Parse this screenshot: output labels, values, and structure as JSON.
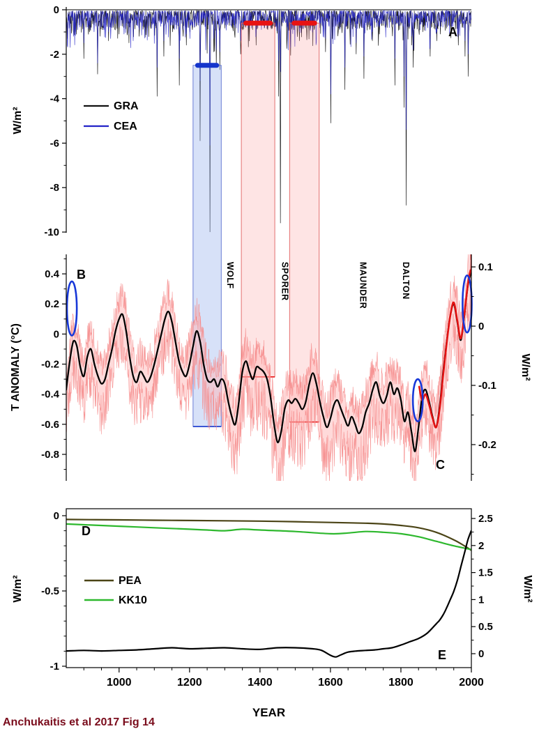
{
  "figure": {
    "caption": "Anchukaitis et al 2017 Fig 14"
  },
  "colors": {
    "gra": "#111111",
    "cea": "#2323c8",
    "temperature": "#000000",
    "annual_line": "#f58a8a",
    "annual_fill": "#ffb5b5",
    "red_forcing": "#e31212",
    "blue_annotation": "#1838d8",
    "band_blue_fill": "#8caaeb",
    "band_blue_edge": "#5b6fd0",
    "band_blue_bar": "#1535cc",
    "band_red_fill": "#fa8282",
    "band_red_edge": "#e06060",
    "band_red_bar": "#e81212",
    "pea": "#4b4416",
    "kk10": "#2db82d",
    "caption": "#7a0c1c",
    "axis": "#000000"
  },
  "chart_data": {
    "type": "line",
    "x": {
      "label": "YEAR",
      "range": [
        850,
        2000
      ],
      "ticks": [
        1000,
        1200,
        1400,
        1600,
        1800,
        2000
      ],
      "minor_step": 50
    },
    "panelA": {
      "letter": "A",
      "ylabel": "W/m²",
      "ylim": [
        -10,
        0
      ],
      "yticks": [
        0,
        -2,
        -4,
        -6,
        -8,
        -10
      ],
      "legend": [
        {
          "label": "GRA",
          "color": "#111111"
        },
        {
          "label": "CEA",
          "color": "#2323c8"
        }
      ],
      "noise": {
        "seed": 11,
        "gra_amp": 0.9,
        "cea_amp": 0.8,
        "spike_chance": 0.08,
        "spike_extra": 1.3
      },
      "volcanic_events": [
        [
          853,
          -1.3,
          -1.6
        ],
        [
          861,
          -0.8,
          -1.7
        ],
        [
          871,
          -1.0,
          -1.2
        ],
        [
          882,
          -0.6,
          -0.9
        ],
        [
          900,
          -2.2,
          -1.5
        ],
        [
          916,
          -1.0,
          -0.7
        ],
        [
          929,
          -0.7,
          -1.0
        ],
        [
          939,
          -2.9,
          -2.4
        ],
        [
          946,
          -1.2,
          -0.8
        ],
        [
          957,
          -0.6,
          -0.9
        ],
        [
          970,
          -1.4,
          -1.0
        ],
        [
          976,
          -0.8,
          -1.3
        ],
        [
          989,
          -0.9,
          -0.6
        ],
        [
          1000,
          -1.1,
          -0.8
        ],
        [
          1014,
          -0.7,
          -1.1
        ],
        [
          1028,
          -1.5,
          -1.1
        ],
        [
          1040,
          -0.6,
          -1.4
        ],
        [
          1057,
          -1.2,
          -0.9
        ],
        [
          1072,
          -0.8,
          -0.6
        ],
        [
          1108,
          -3.9,
          -2.6
        ],
        [
          1127,
          -2.1,
          -1.4
        ],
        [
          1152,
          -1.0,
          -0.7
        ],
        [
          1171,
          -3.4,
          -2.2
        ],
        [
          1182,
          -1.2,
          -0.9
        ],
        [
          1191,
          -1.6,
          -1.1
        ],
        [
          1201,
          -1.0,
          -1.3
        ],
        [
          1214,
          -0.8,
          -0.6
        ],
        [
          1230,
          -5.9,
          -3.2
        ],
        [
          1258,
          -10.0,
          -6.1
        ],
        [
          1269,
          -1.9,
          -1.3
        ],
        [
          1276,
          -2.6,
          -1.8
        ],
        [
          1286,
          -2.7,
          -1.9
        ],
        [
          1328,
          -1.1,
          -0.8
        ],
        [
          1345,
          -2.0,
          -1.4
        ],
        [
          1360,
          -0.8,
          -0.6
        ],
        [
          1389,
          -1.6,
          -1.0
        ],
        [
          1404,
          -0.7,
          -0.9
        ],
        [
          1422,
          -0.9,
          -0.6
        ],
        [
          1453,
          -3.9,
          -2.3
        ],
        [
          1458,
          -9.6,
          -2.8
        ],
        [
          1477,
          -1.1,
          -0.8
        ],
        [
          1512,
          -1.4,
          -1.0
        ],
        [
          1527,
          -0.8,
          -0.6
        ],
        [
          1554,
          -0.9,
          -0.7
        ],
        [
          1586,
          -1.9,
          -1.3
        ],
        [
          1601,
          -5.1,
          -3.8
        ],
        [
          1622,
          -1.0,
          -0.7
        ],
        [
          1641,
          -3.6,
          -2.6
        ],
        [
          1656,
          -0.9,
          -0.6
        ],
        [
          1673,
          -2.0,
          -1.5
        ],
        [
          1695,
          -3.1,
          -2.1
        ],
        [
          1719,
          -1.4,
          -1.0
        ],
        [
          1739,
          -1.1,
          -0.8
        ],
        [
          1756,
          -0.8,
          -0.6
        ],
        [
          1783,
          -3.4,
          -2.2
        ],
        [
          1796,
          -0.9,
          -0.6
        ],
        [
          1809,
          -4.4,
          -3.0
        ],
        [
          1815,
          -8.8,
          -5.4
        ],
        [
          1831,
          -1.6,
          -1.2
        ],
        [
          1835,
          -2.6,
          -1.8
        ],
        [
          1862,
          -1.0,
          -0.7
        ],
        [
          1883,
          -2.1,
          -1.5
        ],
        [
          1902,
          -1.4,
          -1.0
        ],
        [
          1912,
          -1.1,
          -0.8
        ],
        [
          1925,
          -0.6,
          -0.4
        ],
        [
          1963,
          -1.6,
          -1.1
        ],
        [
          1974,
          -0.8,
          -0.6
        ],
        [
          1982,
          -2.1,
          -1.4
        ],
        [
          1991,
          -3.0,
          -2.0
        ]
      ]
    },
    "panelBC": {
      "letter_top": "B",
      "letter_bottom": "C",
      "ylabel_left": "T ANOMALY (°C)",
      "yticks_left": [
        0.4,
        0.2,
        0,
        -0.2,
        -0.4,
        -0.6,
        -0.8
      ],
      "ylabel_right": "W/m²",
      "yticks_right": [
        0.1,
        0,
        -0.1,
        -0.2
      ],
      "temperature": {
        "years": [
          850,
          860,
          870,
          880,
          890,
          900,
          910,
          920,
          930,
          940,
          950,
          960,
          970,
          980,
          990,
          1000,
          1010,
          1020,
          1030,
          1040,
          1050,
          1060,
          1070,
          1080,
          1090,
          1100,
          1110,
          1120,
          1130,
          1140,
          1150,
          1160,
          1170,
          1180,
          1190,
          1200,
          1210,
          1220,
          1230,
          1240,
          1250,
          1260,
          1270,
          1280,
          1290,
          1300,
          1310,
          1320,
          1330,
          1340,
          1350,
          1360,
          1370,
          1380,
          1390,
          1400,
          1410,
          1420,
          1430,
          1440,
          1450,
          1460,
          1470,
          1480,
          1490,
          1500,
          1510,
          1520,
          1530,
          1540,
          1550,
          1560,
          1570,
          1580,
          1590,
          1600,
          1610,
          1620,
          1630,
          1640,
          1650,
          1660,
          1670,
          1680,
          1690,
          1700,
          1710,
          1720,
          1730,
          1740,
          1750,
          1760,
          1770,
          1780,
          1790,
          1800,
          1810,
          1820,
          1830,
          1840,
          1850,
          1860,
          1870,
          1880,
          1890,
          1900,
          1910,
          1920,
          1930,
          1940,
          1950,
          1960,
          1970,
          1980,
          1990,
          2000
        ],
        "values": [
          -0.37,
          -0.18,
          -0.05,
          -0.08,
          -0.22,
          -0.28,
          -0.15,
          -0.1,
          -0.2,
          -0.28,
          -0.33,
          -0.3,
          -0.2,
          -0.1,
          0.02,
          0.1,
          0.13,
          0.02,
          -0.15,
          -0.28,
          -0.32,
          -0.25,
          -0.28,
          -0.32,
          -0.28,
          -0.2,
          -0.1,
          0.0,
          0.1,
          0.15,
          0.08,
          -0.05,
          -0.18,
          -0.25,
          -0.28,
          -0.2,
          -0.08,
          0.02,
          -0.05,
          -0.2,
          -0.3,
          -0.32,
          -0.3,
          -0.35,
          -0.3,
          -0.33,
          -0.45,
          -0.55,
          -0.6,
          -0.45,
          -0.25,
          -0.18,
          -0.25,
          -0.3,
          -0.22,
          -0.23,
          -0.25,
          -0.3,
          -0.42,
          -0.6,
          -0.72,
          -0.65,
          -0.5,
          -0.44,
          -0.46,
          -0.43,
          -0.46,
          -0.5,
          -0.45,
          -0.33,
          -0.26,
          -0.33,
          -0.45,
          -0.55,
          -0.62,
          -0.56,
          -0.47,
          -0.44,
          -0.5,
          -0.56,
          -0.61,
          -0.55,
          -0.6,
          -0.66,
          -0.62,
          -0.52,
          -0.46,
          -0.37,
          -0.32,
          -0.41,
          -0.46,
          -0.41,
          -0.32,
          -0.4,
          -0.36,
          -0.44,
          -0.58,
          -0.52,
          -0.65,
          -0.78,
          -0.62,
          -0.42,
          -0.37,
          -0.45,
          -0.55,
          -0.62,
          -0.48,
          -0.25,
          -0.05,
          0.12,
          0.2,
          0.08,
          -0.04,
          0.12,
          0.32,
          0.42
        ]
      },
      "annual_noise": {
        "seed": 29,
        "up_amp": 0.2,
        "down_amp": 0.3
      },
      "red_curve": {
        "years": [
          1852,
          1860,
          1870,
          1880,
          1890,
          1900,
          1910,
          1920,
          1930,
          1940,
          1950,
          1960,
          1970,
          1980,
          1990,
          1997,
          2000,
          2001
        ],
        "values": [
          -0.35,
          -0.44,
          -0.4,
          -0.47,
          -0.56,
          -0.62,
          -0.5,
          -0.27,
          -0.06,
          0.12,
          0.21,
          0.09,
          -0.03,
          0.13,
          0.33,
          0.42,
          0.43,
          0.6
        ]
      },
      "bands": [
        {
          "name": "wolf-minimum",
          "kind": "blue",
          "from": 1210,
          "to": 1290,
          "bar_level_wm2": -2.5,
          "bottom_t": -0.615
        },
        {
          "name": "sporer-minimum-1",
          "kind": "red",
          "from": 1347,
          "to": 1442,
          "bar_level_wm2": -0.6,
          "bottom_t": -0.285
        },
        {
          "name": "sporer-minimum-2",
          "kind": "red",
          "from": 1484,
          "to": 1568,
          "bar_level_wm2": -0.6,
          "bottom_t": -0.585
        }
      ],
      "minima_labels": [
        {
          "label": "WOLF",
          "year": 1307,
          "t_top": 0.48
        },
        {
          "label": "SPORER",
          "year": 1463,
          "t_top": 0.48
        },
        {
          "label": "MAUNDER",
          "year": 1684,
          "t_top": 0.48
        },
        {
          "label": "DALTON",
          "year": 1806,
          "t_top": 0.48
        }
      ],
      "ellipses": [
        {
          "year": 866,
          "t": 0.17,
          "ry_t": 0.18,
          "rx_years": 14
        },
        {
          "year": 1848,
          "t": -0.44,
          "ry_t": 0.14,
          "rx_years": 14
        },
        {
          "year": 1988,
          "t": 0.2,
          "ry_t": 0.19,
          "rx_years": 13
        }
      ]
    },
    "panelDE": {
      "letter_top": "D",
      "letter_bottom": "E",
      "ylabel_left": "W/m²",
      "yticks_left": [
        0,
        -0.5,
        -1
      ],
      "ylabel_right": "W/m²",
      "yticks_right": [
        2.5,
        2,
        1.5,
        1,
        0.5,
        0
      ],
      "legend": [
        {
          "label": "PEA",
          "color": "#4b4416"
        },
        {
          "label": "KK10",
          "color": "#2db82d"
        }
      ],
      "pea": {
        "years": [
          850,
          1000,
          1100,
          1200,
          1300,
          1400,
          1500,
          1600,
          1700,
          1750,
          1800,
          1850,
          1900,
          1950,
          1980,
          2000
        ],
        "values": [
          -0.025,
          -0.028,
          -0.03,
          -0.032,
          -0.034,
          -0.036,
          -0.04,
          -0.045,
          -0.05,
          -0.055,
          -0.065,
          -0.08,
          -0.11,
          -0.16,
          -0.2,
          -0.23
        ]
      },
      "kk10": {
        "years": [
          850,
          900,
          1000,
          1100,
          1200,
          1250,
          1300,
          1350,
          1400,
          1500,
          1600,
          1650,
          1700,
          1750,
          1800,
          1850,
          1900,
          1950,
          2000
        ],
        "values": [
          -0.055,
          -0.06,
          -0.07,
          -0.08,
          -0.09,
          -0.095,
          -0.1,
          -0.09,
          -0.095,
          -0.105,
          -0.12,
          -0.115,
          -0.105,
          -0.11,
          -0.12,
          -0.14,
          -0.17,
          -0.2,
          -0.225
        ]
      },
      "ghg_black": {
        "years": [
          850,
          900,
          950,
          1000,
          1050,
          1100,
          1150,
          1200,
          1250,
          1300,
          1350,
          1400,
          1450,
          1500,
          1550,
          1575,
          1600,
          1615,
          1630,
          1650,
          1675,
          1700,
          1725,
          1750,
          1775,
          1800,
          1825,
          1850,
          1875,
          1900,
          1910,
          1920,
          1930,
          1940,
          1950,
          1960,
          1970,
          1980,
          1990,
          2000
        ],
        "values": [
          0.05,
          0.06,
          0.05,
          0.06,
          0.07,
          0.09,
          0.11,
          0.09,
          0.1,
          0.11,
          0.09,
          0.08,
          0.11,
          0.11,
          0.09,
          0.06,
          -0.03,
          -0.06,
          -0.02,
          0.03,
          0.05,
          0.06,
          0.07,
          0.09,
          0.11,
          0.16,
          0.22,
          0.28,
          0.38,
          0.55,
          0.62,
          0.72,
          0.85,
          1.0,
          1.15,
          1.35,
          1.6,
          1.85,
          2.1,
          2.28
        ]
      }
    }
  }
}
